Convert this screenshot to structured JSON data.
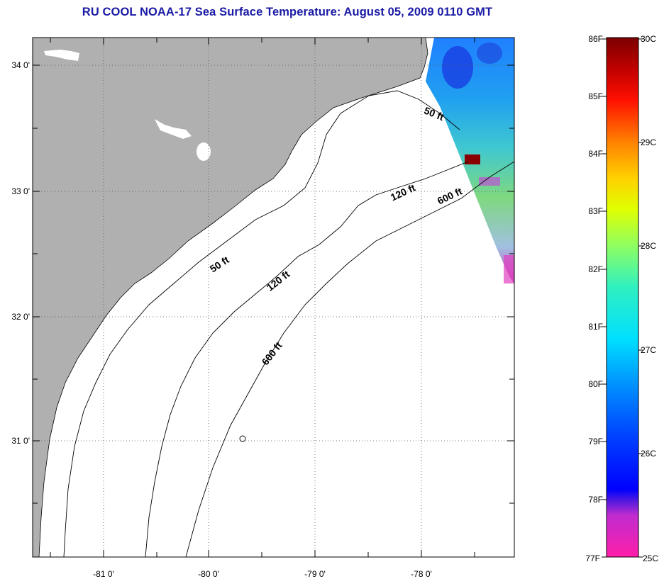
{
  "title": "RU COOL  NOAA-17  Sea Surface Temperature:  August 05, 2009 0110 GMT",
  "colors": {
    "title": "#1a1aa6",
    "land": "#b0b0b0",
    "ocean": "#ffffff",
    "coast": "#000000"
  },
  "map": {
    "lon_ticks": [
      "-81 0'",
      "-80 0'",
      "-79 0'",
      "-78 0'"
    ],
    "lat_ticks": [
      "34 0'",
      "33 0'",
      "32 0'",
      "31 0'"
    ],
    "gridlines": true,
    "contour_labels": [
      "50 ft",
      "120 ft",
      "600 ft",
      "50 ft",
      "120 ft",
      "600 ft"
    ]
  },
  "colorbar": {
    "fahrenheit_labels": [
      "86F",
      "85F",
      "84F",
      "83F",
      "82F",
      "81F",
      "80F",
      "79F",
      "78F",
      "77F"
    ],
    "celsius_labels": [
      "30C",
      "29C",
      "28C",
      "27C",
      "26C",
      "25C"
    ],
    "range_f": [
      77,
      86
    ],
    "range_c": [
      25,
      30
    ]
  }
}
